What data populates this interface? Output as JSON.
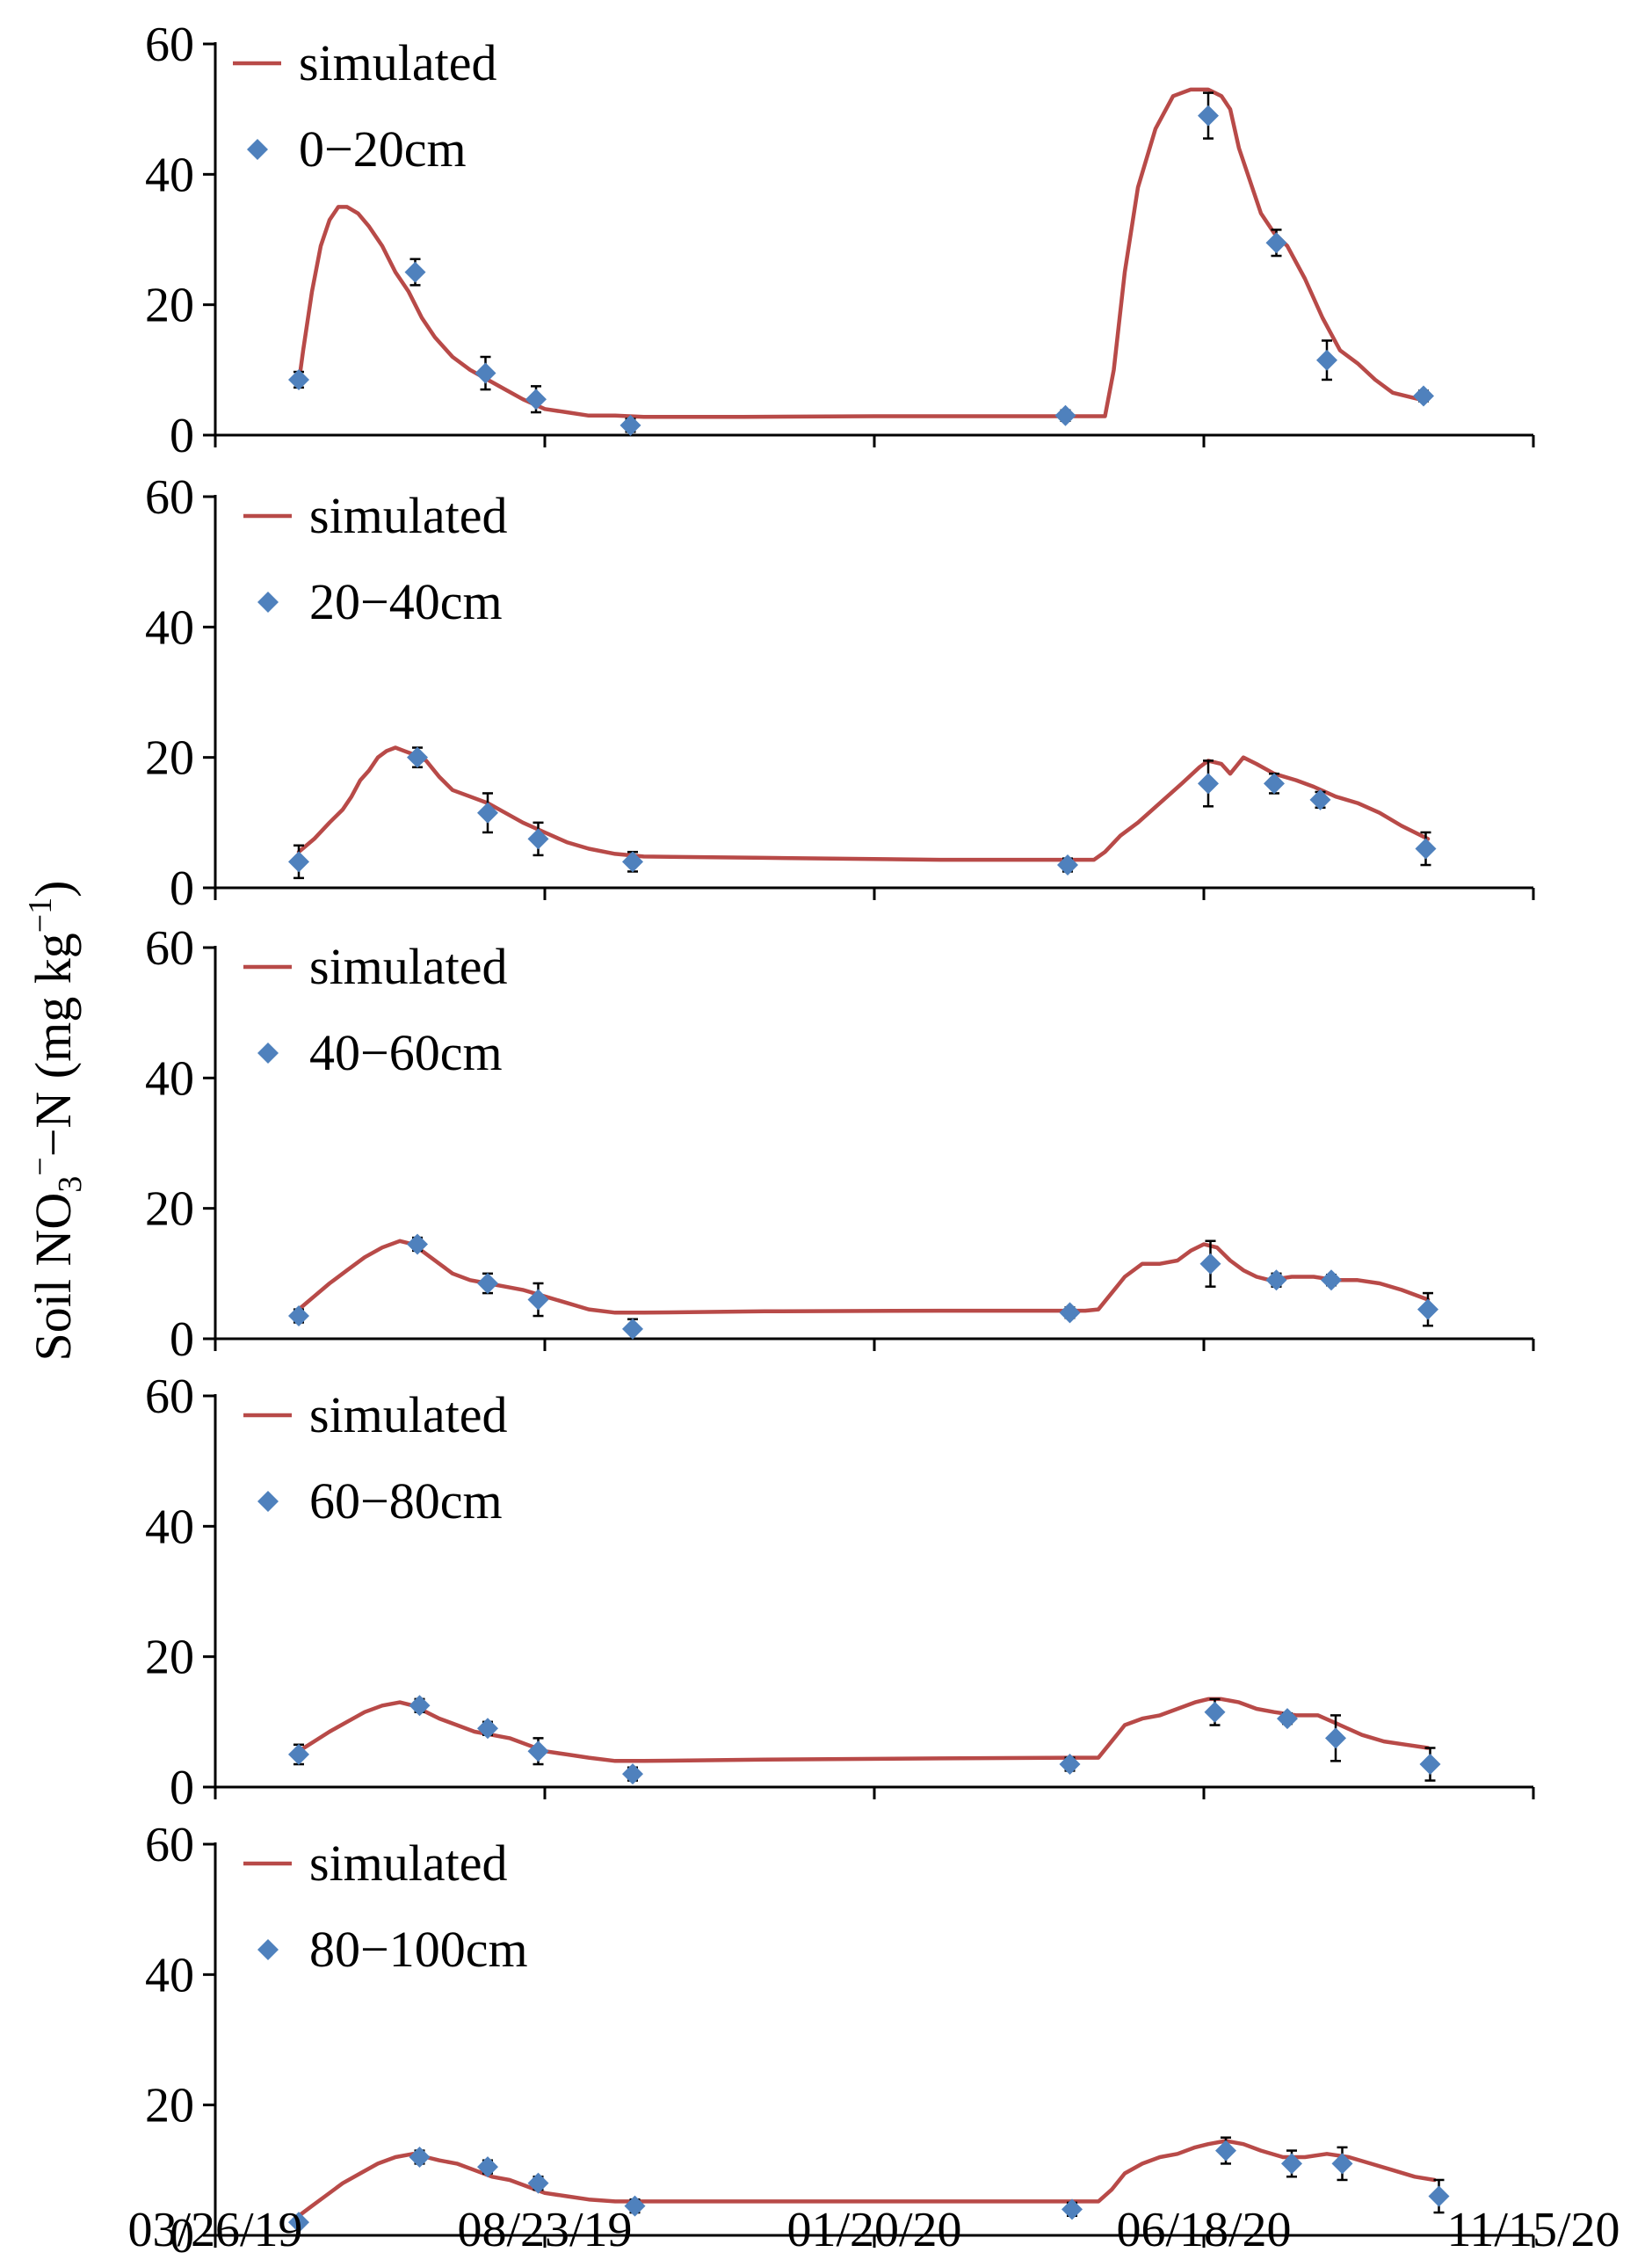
{
  "figure": {
    "ylabel_main": "Soil NO",
    "ylabel_sub": "3",
    "ylabel_sup": "−",
    "ylabel_rest": "−N (mg kg",
    "ylabel_unit_sup": "−1",
    "ylabel_close": ")"
  },
  "colors": {
    "simulated": "#b84a48",
    "observed": "#4f81bd",
    "axis": "#000000"
  },
  "x_axis": {
    "range_days": [
      0,
      600
    ],
    "ticks": [
      {
        "day": 0,
        "label": "03/26/19"
      },
      {
        "day": 150,
        "label": "08/23/19"
      },
      {
        "day": 300,
        "label": "01/20/20"
      },
      {
        "day": 450,
        "label": "06/18/20"
      },
      {
        "day": 600,
        "label": "11/15/20"
      }
    ]
  },
  "chart_data": [
    {
      "type": "line",
      "layer": "0−20cm",
      "ylim": [
        0,
        60
      ],
      "yticks": [
        "0",
        "20",
        "40",
        "60"
      ],
      "legend": {
        "line": "simulated",
        "marker": "0−20cm"
      },
      "simulated": {
        "x": [
          38,
          40,
          44,
          48,
          52,
          56,
          60,
          65,
          70,
          76,
          82,
          88,
          94,
          100,
          108,
          116,
          124,
          132,
          140,
          150,
          160,
          170,
          182,
          195,
          240,
          300,
          360,
          395,
          405,
          409,
          414,
          420,
          428,
          436,
          444,
          452,
          458,
          462,
          466,
          470,
          476,
          482,
          488,
          496,
          504,
          512,
          520,
          528,
          536,
          548
        ],
        "y": [
          8,
          13,
          22,
          29,
          33,
          35,
          35,
          34,
          32,
          29,
          25,
          22,
          18,
          15,
          12,
          10,
          8.5,
          7,
          5.5,
          4,
          3.5,
          3,
          3,
          2.8,
          2.8,
          2.9,
          2.9,
          2.9,
          2.9,
          10,
          25,
          38,
          47,
          52,
          53,
          53,
          52,
          50,
          44,
          40,
          34,
          31,
          29,
          24,
          18,
          13,
          11,
          8.5,
          6.5,
          5.5
        ]
      },
      "observed": [
        {
          "x": 38,
          "y": 8.5,
          "err": 1.2
        },
        {
          "x": 91,
          "y": 25,
          "err": 2
        },
        {
          "x": 123,
          "y": 9.5,
          "err": 2.5
        },
        {
          "x": 146,
          "y": 5.5,
          "err": 2
        },
        {
          "x": 189,
          "y": 1.5,
          "err": 1
        },
        {
          "x": 387,
          "y": 3,
          "err": 0.8
        },
        {
          "x": 452,
          "y": 49,
          "err": 3.5
        },
        {
          "x": 483,
          "y": 29.5,
          "err": 2
        },
        {
          "x": 506,
          "y": 11.5,
          "err": 3
        },
        {
          "x": 550,
          "y": 6,
          "err": 0.8
        }
      ]
    },
    {
      "type": "line",
      "layer": "20−40cm",
      "ylim": [
        0,
        60
      ],
      "yticks": [
        "0",
        "20",
        "40",
        "60"
      ],
      "legend": {
        "line": "simulated",
        "marker": "20−40cm"
      },
      "simulated": {
        "x": [
          38,
          45,
          52,
          58,
          62,
          66,
          70,
          74,
          78,
          82,
          86,
          90,
          96,
          102,
          108,
          116,
          124,
          132,
          140,
          150,
          160,
          170,
          182,
          195,
          250,
          330,
          389,
          395,
          400,
          405,
          412,
          420,
          430,
          440,
          448,
          452,
          458,
          462,
          468,
          474,
          482,
          492,
          500,
          510,
          520,
          530,
          540,
          552
        ],
        "y": [
          5.5,
          7.5,
          10,
          12,
          14,
          16.5,
          18,
          20,
          21,
          21.5,
          21,
          20.5,
          19.5,
          17,
          15,
          14,
          13,
          11.5,
          10,
          8.5,
          7,
          6,
          5.2,
          4.8,
          4.6,
          4.3,
          4.3,
          4.3,
          4.3,
          5.5,
          8,
          10,
          13,
          16,
          18.5,
          19.5,
          19,
          17.5,
          20,
          19,
          17.5,
          16.5,
          15.5,
          14,
          13,
          11.5,
          9.5,
          7.5
        ]
      },
      "observed": [
        {
          "x": 38,
          "y": 4,
          "err": 2.5
        },
        {
          "x": 92,
          "y": 20,
          "err": 1.5
        },
        {
          "x": 124,
          "y": 11.5,
          "err": 3
        },
        {
          "x": 147,
          "y": 7.5,
          "err": 2.5
        },
        {
          "x": 190,
          "y": 4,
          "err": 1.5
        },
        {
          "x": 388,
          "y": 3.5,
          "err": 1
        },
        {
          "x": 452,
          "y": 16,
          "err": 3.5
        },
        {
          "x": 482,
          "y": 16,
          "err": 1.5
        },
        {
          "x": 503,
          "y": 13.5,
          "err": 1.2
        },
        {
          "x": 551,
          "y": 6,
          "err": 2.5
        }
      ]
    },
    {
      "type": "line",
      "layer": "40−60cm",
      "ylim": [
        0,
        60
      ],
      "yticks": [
        "0",
        "20",
        "40",
        "60"
      ],
      "legend": {
        "line": "simulated",
        "marker": "40−60cm"
      },
      "simulated": {
        "x": [
          38,
          45,
          52,
          60,
          68,
          76,
          84,
          90,
          96,
          102,
          108,
          116,
          124,
          132,
          140,
          150,
          160,
          170,
          182,
          195,
          250,
          330,
          389,
          396,
          402,
          408,
          414,
          422,
          430,
          438,
          444,
          450,
          456,
          462,
          468,
          474,
          480,
          490,
          500,
          510,
          520,
          530,
          540,
          552
        ],
        "y": [
          4.5,
          6.5,
          8.5,
          10.5,
          12.5,
          14,
          15,
          14.5,
          13,
          11.5,
          10,
          9,
          8.5,
          8,
          7.5,
          6.5,
          5.5,
          4.5,
          4,
          4,
          4.2,
          4.3,
          4.3,
          4.3,
          4.5,
          7,
          9.5,
          11.5,
          11.5,
          12,
          13.5,
          14.5,
          14,
          12,
          10.5,
          9.5,
          9,
          9.5,
          9.5,
          9,
          9,
          8.5,
          7.5,
          6
        ]
      },
      "observed": [
        {
          "x": 38,
          "y": 3.5,
          "err": 1
        },
        {
          "x": 92,
          "y": 14.5,
          "err": 1
        },
        {
          "x": 124,
          "y": 8.5,
          "err": 1.5
        },
        {
          "x": 147,
          "y": 6,
          "err": 2.5
        },
        {
          "x": 190,
          "y": 1.5,
          "err": 1.5
        },
        {
          "x": 389,
          "y": 4,
          "err": 0.8
        },
        {
          "x": 453,
          "y": 11.5,
          "err": 3.5
        },
        {
          "x": 483,
          "y": 9,
          "err": 1
        },
        {
          "x": 508,
          "y": 9,
          "err": 0.8
        },
        {
          "x": 552,
          "y": 4.5,
          "err": 2.5
        }
      ]
    },
    {
      "type": "line",
      "layer": "60−80cm",
      "ylim": [
        0,
        60
      ],
      "yticks": [
        "0",
        "20",
        "40",
        "60"
      ],
      "legend": {
        "line": "simulated",
        "marker": "60−80cm"
      },
      "simulated": {
        "x": [
          38,
          45,
          52,
          60,
          68,
          76,
          84,
          90,
          96,
          102,
          110,
          118,
          126,
          134,
          142,
          150,
          160,
          170,
          182,
          195,
          250,
          330,
          389,
          396,
          402,
          408,
          414,
          422,
          430,
          438,
          446,
          452,
          458,
          466,
          474,
          482,
          492,
          502,
          512,
          522,
          532,
          542,
          552
        ],
        "y": [
          5.5,
          7,
          8.5,
          10,
          11.5,
          12.5,
          13,
          12.5,
          11.5,
          10.5,
          9.5,
          8.5,
          8,
          7.5,
          6.5,
          5.5,
          5,
          4.5,
          4,
          4,
          4.2,
          4.4,
          4.5,
          4.5,
          4.5,
          7,
          9.5,
          10.5,
          11,
          12,
          13,
          13.5,
          13.5,
          13,
          12,
          11.5,
          11,
          11,
          9.5,
          8,
          7,
          6.5,
          6
        ]
      },
      "observed": [
        {
          "x": 38,
          "y": 5,
          "err": 1.5
        },
        {
          "x": 93,
          "y": 12.5,
          "err": 1
        },
        {
          "x": 124,
          "y": 9,
          "err": 1
        },
        {
          "x": 147,
          "y": 5.5,
          "err": 2
        },
        {
          "x": 190,
          "y": 2,
          "err": 1
        },
        {
          "x": 389,
          "y": 3.5,
          "err": 1
        },
        {
          "x": 455,
          "y": 11.5,
          "err": 2
        },
        {
          "x": 488,
          "y": 10.5,
          "err": 0.8
        },
        {
          "x": 510,
          "y": 7.5,
          "err": 3.5
        },
        {
          "x": 553,
          "y": 3.5,
          "err": 2.5
        }
      ]
    },
    {
      "type": "line",
      "layer": "80−100cm",
      "ylim": [
        0,
        60
      ],
      "yticks": [
        "0",
        "20",
        "40",
        "60"
      ],
      "legend": {
        "line": "simulated",
        "marker": "80−100cm"
      },
      "simulated": {
        "x": [
          38,
          44,
          50,
          58,
          66,
          74,
          82,
          90,
          96,
          102,
          110,
          118,
          126,
          134,
          142,
          150,
          160,
          170,
          182,
          195,
          250,
          330,
          389,
          396,
          402,
          408,
          414,
          422,
          430,
          438,
          446,
          452,
          460,
          468,
          476,
          486,
          496,
          506,
          516,
          526,
          536,
          546,
          555
        ],
        "y": [
          3,
          4.5,
          6,
          8,
          9.5,
          11,
          12,
          12.5,
          12,
          11.5,
          11,
          10,
          9,
          8.5,
          7.5,
          6.5,
          6,
          5.5,
          5.2,
          5.2,
          5.2,
          5.2,
          5.2,
          5.2,
          5.2,
          7,
          9.5,
          11,
          12,
          12.5,
          13.5,
          14,
          14.5,
          14,
          13,
          12,
          12,
          12.5,
          12,
          11,
          10,
          9,
          8.5
        ]
      },
      "observed": [
        {
          "x": 38,
          "y": 2,
          "err": 0.5
        },
        {
          "x": 93,
          "y": 12,
          "err": 1
        },
        {
          "x": 124,
          "y": 10.5,
          "err": 1
        },
        {
          "x": 147,
          "y": 8,
          "err": 1
        },
        {
          "x": 191,
          "y": 4.5,
          "err": 1
        },
        {
          "x": 390,
          "y": 4,
          "err": 1
        },
        {
          "x": 460,
          "y": 13,
          "err": 2
        },
        {
          "x": 490,
          "y": 11,
          "err": 2
        },
        {
          "x": 513,
          "y": 11,
          "err": 2.5
        },
        {
          "x": 557,
          "y": 6,
          "err": 2.5
        }
      ]
    }
  ]
}
